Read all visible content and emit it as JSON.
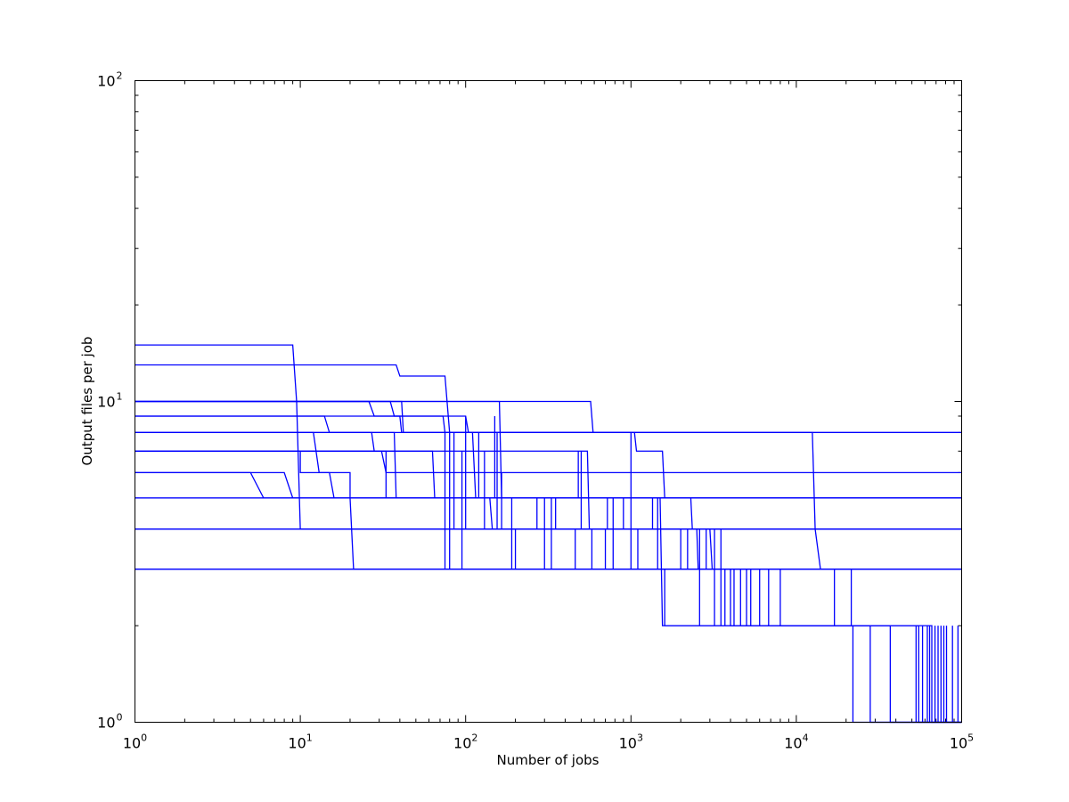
{
  "chart_data": {
    "type": "line",
    "title": "",
    "xlabel": "Number of jobs",
    "ylabel": "Output files per job",
    "xscale": "log",
    "yscale": "log",
    "xlim": [
      1,
      100000
    ],
    "ylim": [
      1,
      100
    ],
    "grid": false,
    "legend": "none",
    "line_color": "#0000ff",
    "x_ticks": [
      {
        "value": 1,
        "base": "10",
        "exp": "0"
      },
      {
        "value": 10,
        "base": "10",
        "exp": "1"
      },
      {
        "value": 100,
        "base": "10",
        "exp": "2"
      },
      {
        "value": 1000,
        "base": "10",
        "exp": "3"
      },
      {
        "value": 10000,
        "base": "10",
        "exp": "4"
      },
      {
        "value": 100000,
        "base": "10",
        "exp": "5"
      }
    ],
    "y_ticks": [
      {
        "value": 1,
        "base": "10",
        "exp": "0"
      },
      {
        "value": 10,
        "base": "10",
        "exp": "1"
      },
      {
        "value": 100,
        "base": "10",
        "exp": "2"
      }
    ],
    "series": [
      {
        "x": [
          1,
          9,
          9.5,
          10,
          10,
          100000
        ],
        "y": [
          15,
          15,
          10,
          4,
          4,
          4
        ]
      },
      {
        "x": [
          1,
          38,
          40,
          75,
          80,
          80,
          100000
        ],
        "y": [
          13,
          13,
          12,
          12,
          8,
          3,
          3
        ]
      },
      {
        "x": [
          1,
          26,
          28,
          73,
          75,
          1000,
          1000,
          100000
        ],
        "y": [
          10,
          10,
          9,
          9,
          8,
          8,
          3,
          3
        ]
      },
      {
        "x": [
          1,
          35,
          37,
          40,
          41,
          100000
        ],
        "y": [
          10,
          10,
          9,
          9,
          8,
          8
        ]
      },
      {
        "x": [
          1,
          41,
          42,
          100000
        ],
        "y": [
          10,
          10,
          8,
          8
        ]
      },
      {
        "x": [
          1,
          160,
          165,
          100000
        ],
        "y": [
          10,
          10,
          5,
          5
        ]
      },
      {
        "x": [
          1,
          570,
          590,
          1050,
          1080,
          1550,
          1600,
          2300,
          2350,
          100000
        ],
        "y": [
          10,
          10,
          8,
          8,
          7,
          7,
          5,
          5,
          4,
          4
        ]
      },
      {
        "x": [
          1,
          14,
          15,
          37,
          38,
          100000
        ],
        "y": [
          9,
          9,
          8,
          8,
          5,
          5
        ]
      },
      {
        "x": [
          1,
          100,
          104,
          110,
          115,
          100000
        ],
        "y": [
          9,
          9,
          8,
          8,
          5,
          5
        ]
      },
      {
        "x": [
          1,
          12500,
          13000,
          14000,
          100000
        ],
        "y": [
          8,
          8,
          4,
          3,
          3
        ]
      },
      {
        "x": [
          1,
          12,
          13,
          20,
          20,
          100000
        ],
        "y": [
          8,
          8,
          6,
          6,
          5,
          5
        ]
      },
      {
        "x": [
          1,
          27,
          28,
          33,
          33,
          100000
        ],
        "y": [
          8,
          8,
          7,
          7,
          5,
          5
        ]
      },
      {
        "x": [
          1,
          10,
          10,
          15,
          16,
          100000
        ],
        "y": [
          7,
          7,
          6,
          6,
          5,
          5
        ]
      },
      {
        "x": [
          1,
          31,
          33,
          100000
        ],
        "y": [
          7,
          7,
          6,
          6
        ]
      },
      {
        "x": [
          1,
          63,
          65,
          140,
          145,
          100000
        ],
        "y": [
          7,
          7,
          5,
          5,
          4,
          4
        ]
      },
      {
        "x": [
          1,
          545,
          560,
          100000
        ],
        "y": [
          7,
          7,
          4,
          4
        ]
      },
      {
        "x": [
          1,
          8,
          9,
          100000
        ],
        "y": [
          6,
          6,
          5,
          5
        ]
      },
      {
        "x": [
          1,
          5,
          6,
          100000
        ],
        "y": [
          6,
          6,
          5,
          5
        ]
      },
      {
        "x": [
          1,
          20,
          21,
          100000
        ],
        "y": [
          5,
          5,
          3,
          3
        ]
      },
      {
        "x": [
          1,
          1500,
          1550,
          22000,
          22000,
          100000
        ],
        "y": [
          5,
          5,
          2,
          2,
          1,
          1
        ]
      },
      {
        "x": [
          1,
          3000,
          3100,
          4000,
          4000,
          28000,
          28000,
          100000
        ],
        "y": [
          4,
          4,
          3,
          3,
          2,
          2,
          1,
          1
        ]
      },
      {
        "x": [
          1,
          2500,
          2550,
          8000,
          8000,
          37000,
          37000,
          100000
        ],
        "y": [
          4,
          4,
          3,
          3,
          2,
          2,
          1,
          1
        ]
      },
      {
        "x": [
          1,
          17000,
          17000,
          55000,
          55000,
          100000
        ],
        "y": [
          3,
          3,
          2,
          2,
          1,
          1
        ]
      },
      {
        "x": [
          1,
          1600,
          1600,
          66000,
          66000,
          100000
        ],
        "y": [
          3,
          3,
          2,
          2,
          1,
          1
        ]
      }
    ],
    "vertical_drops": [
      {
        "x": 75,
        "y": [
          3,
          8
        ]
      },
      {
        "x": 85,
        "y": [
          4,
          8
        ]
      },
      {
        "x": 95,
        "y": [
          3,
          7
        ]
      },
      {
        "x": 100,
        "y": [
          4,
          9
        ]
      },
      {
        "x": 120,
        "y": [
          5,
          8
        ]
      },
      {
        "x": 130,
        "y": [
          4,
          7
        ]
      },
      {
        "x": 150,
        "y": [
          5,
          9
        ]
      },
      {
        "x": 155,
        "y": [
          4,
          8
        ]
      },
      {
        "x": 165,
        "y": [
          4,
          6
        ]
      },
      {
        "x": 190,
        "y": [
          3,
          5
        ]
      },
      {
        "x": 200,
        "y": [
          3,
          4
        ]
      },
      {
        "x": 270,
        "y": [
          4,
          5
        ]
      },
      {
        "x": 300,
        "y": [
          3,
          5
        ]
      },
      {
        "x": 330,
        "y": [
          3,
          5
        ]
      },
      {
        "x": 350,
        "y": [
          4,
          5
        ]
      },
      {
        "x": 460,
        "y": [
          3,
          4
        ]
      },
      {
        "x": 480,
        "y": [
          5,
          7
        ]
      },
      {
        "x": 500,
        "y": [
          4,
          7
        ]
      },
      {
        "x": 580,
        "y": [
          3,
          4
        ]
      },
      {
        "x": 700,
        "y": [
          3,
          4
        ]
      },
      {
        "x": 720,
        "y": [
          4,
          5
        ]
      },
      {
        "x": 780,
        "y": [
          3,
          5
        ]
      },
      {
        "x": 900,
        "y": [
          4,
          5
        ]
      },
      {
        "x": 1100,
        "y": [
          3,
          4
        ]
      },
      {
        "x": 1350,
        "y": [
          4,
          5
        ]
      },
      {
        "x": 1450,
        "y": [
          3,
          5
        ]
      },
      {
        "x": 2000,
        "y": [
          3,
          4
        ]
      },
      {
        "x": 2200,
        "y": [
          3,
          4
        ]
      },
      {
        "x": 2600,
        "y": [
          2,
          4
        ]
      },
      {
        "x": 2850,
        "y": [
          3,
          4
        ]
      },
      {
        "x": 3200,
        "y": [
          2,
          4
        ]
      },
      {
        "x": 3500,
        "y": [
          2,
          4
        ]
      },
      {
        "x": 3700,
        "y": [
          2,
          3
        ]
      },
      {
        "x": 4200,
        "y": [
          2,
          3
        ]
      },
      {
        "x": 4600,
        "y": [
          2,
          3
        ]
      },
      {
        "x": 5000,
        "y": [
          2,
          3
        ]
      },
      {
        "x": 5300,
        "y": [
          2,
          3
        ]
      },
      {
        "x": 6000,
        "y": [
          2,
          3
        ]
      },
      {
        "x": 6800,
        "y": [
          2,
          3
        ]
      },
      {
        "x": 21500,
        "y": [
          2,
          3
        ]
      },
      {
        "x": 53000,
        "y": [
          1,
          2
        ]
      },
      {
        "x": 58000,
        "y": [
          1,
          2
        ]
      },
      {
        "x": 62000,
        "y": [
          1,
          2
        ]
      },
      {
        "x": 64000,
        "y": [
          1,
          2
        ]
      },
      {
        "x": 69000,
        "y": [
          1,
          2
        ]
      },
      {
        "x": 72000,
        "y": [
          1,
          2
        ]
      },
      {
        "x": 75000,
        "y": [
          1,
          2
        ]
      },
      {
        "x": 78000,
        "y": [
          1,
          2
        ]
      },
      {
        "x": 81000,
        "y": [
          1,
          2
        ]
      },
      {
        "x": 88000,
        "y": [
          1,
          2
        ]
      },
      {
        "x": 95000,
        "y": [
          1,
          2
        ]
      }
    ]
  }
}
